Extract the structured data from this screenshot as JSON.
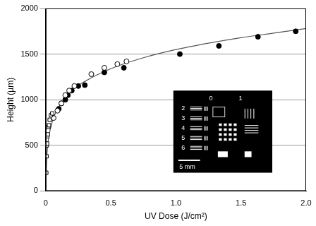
{
  "chart_data": {
    "type": "scatter",
    "x_label": "UV Dose (J/cm²)",
    "y_label": "Height (µm)",
    "xlim": [
      0,
      2
    ],
    "xticks": [
      0,
      0.5,
      {
        "value": 1,
        "label": "1.0"
      },
      1.5,
      {
        "value": 2,
        "label": "2.0"
      }
    ],
    "ylim": [
      0,
      2000
    ],
    "yticks": [
      0,
      500,
      1000,
      1500,
      2000
    ],
    "grid": "y",
    "series": [
      {
        "color": "#000000",
        "marker": "square_open",
        "x": [
          0.004,
          0.006,
          0.008,
          0.01,
          0.012,
          0.016,
          0.02,
          0.025,
          0.03,
          0.04,
          0.05
        ],
        "values": [
          200,
          380,
          500,
          520,
          600,
          620,
          700,
          720,
          780,
          830,
          850
        ]
      },
      {
        "color": "#000000",
        "marker": "circle_open",
        "x": [
          0.06,
          0.09,
          0.12,
          0.15,
          0.18,
          0.22,
          0.35,
          0.45,
          0.55,
          0.62
        ],
        "values": [
          800,
          880,
          960,
          1050,
          1100,
          1150,
          1280,
          1350,
          1390,
          1420
        ]
      },
      {
        "color": "#000000",
        "marker": "circle",
        "x": [
          0.1,
          0.12,
          0.15,
          0.17,
          0.2,
          0.25,
          0.3,
          0.45,
          0.6,
          1.03,
          1.33,
          1.63,
          1.92
        ],
        "values": [
          900,
          960,
          1000,
          1050,
          1100,
          1150,
          1160,
          1300,
          1350,
          1500,
          1590,
          1690,
          1750
        ]
      },
      {
        "color": "#555555",
        "type": "line",
        "marker": "none",
        "line_style": "solid",
        "x": [
          0.002,
          0.01,
          0.02,
          0.05,
          0.1,
          0.2,
          0.3,
          0.5,
          0.75,
          1.0,
          1.25,
          1.5,
          1.75,
          2.0
        ],
        "values": [
          150,
          420,
          560,
          760,
          920,
          1100,
          1200,
          1340,
          1460,
          1550,
          1620,
          1680,
          1730,
          1780
        ]
      }
    ],
    "inset": {
      "group_labels": [
        "0",
        "1"
      ],
      "element_labels": [
        "2",
        "3",
        "4",
        "5",
        "6"
      ],
      "scale_bar": "5 mm"
    }
  }
}
